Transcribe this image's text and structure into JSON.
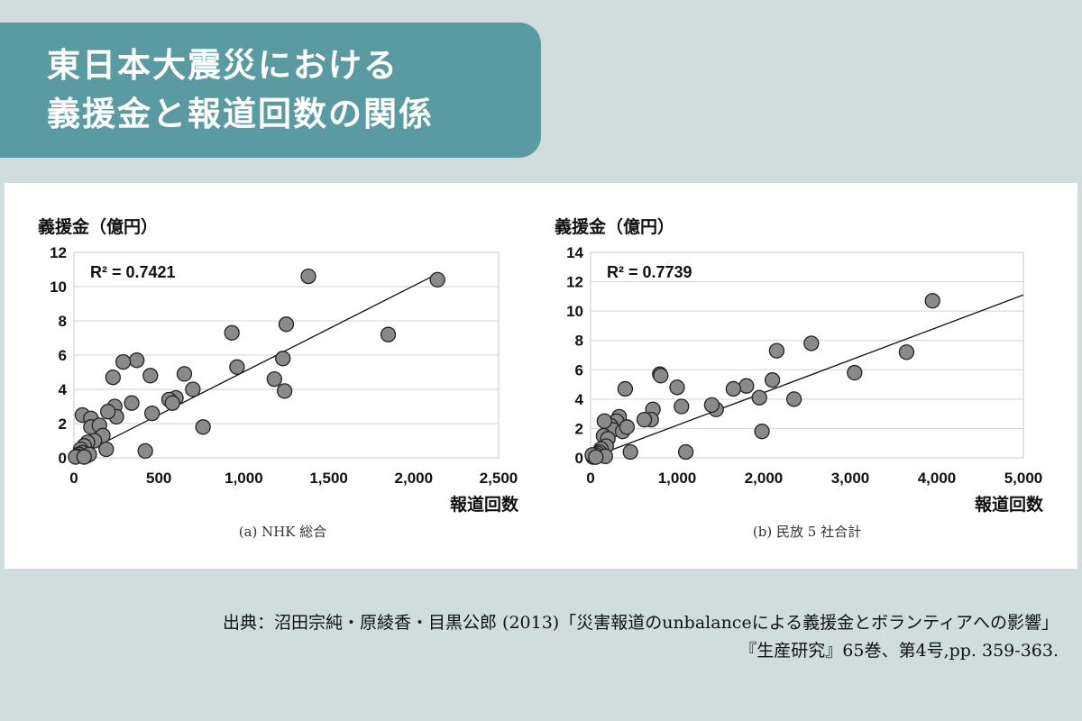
{
  "title": {
    "line1": "東日本大震災における",
    "line2": "義援金と報道回数の関係"
  },
  "colors": {
    "background": "#cfdedd",
    "banner": "#5a9ba1",
    "point_fill": "#8a8a8a",
    "point_stroke": "#222222"
  },
  "chart_data": [
    {
      "type": "scatter",
      "ylabel": "義援金（億円）",
      "xlabel": "報道回数",
      "caption": "(a)  NHK 総合",
      "r_squared": "R² = 0.7421",
      "xlim": [
        0,
        2500
      ],
      "ylim": [
        0,
        12
      ],
      "xticks": [
        0,
        500,
        1000,
        1500,
        2000,
        2500
      ],
      "xtick_labels": [
        "0",
        "500",
        "1,000",
        "1,500",
        "2,000",
        "2,500"
      ],
      "yticks": [
        0,
        2,
        4,
        6,
        8,
        10,
        12
      ],
      "ytick_labels": [
        "0",
        "2",
        "4",
        "6",
        "8",
        "10",
        "12"
      ],
      "trendline": [
        [
          0,
          0
        ],
        [
          2150,
          10.8
        ]
      ],
      "grid": "horizontal",
      "points": [
        [
          2140,
          10.4
        ],
        [
          1380,
          10.6
        ],
        [
          1850,
          7.2
        ],
        [
          1250,
          7.8
        ],
        [
          930,
          7.3
        ],
        [
          960,
          5.3
        ],
        [
          1230,
          5.8
        ],
        [
          1180,
          4.6
        ],
        [
          1240,
          3.9
        ],
        [
          650,
          4.9
        ],
        [
          700,
          4.0
        ],
        [
          760,
          1.8
        ],
        [
          600,
          3.5
        ],
        [
          560,
          3.4
        ],
        [
          580,
          3.2
        ],
        [
          450,
          4.8
        ],
        [
          460,
          2.6
        ],
        [
          420,
          0.4
        ],
        [
          370,
          5.7
        ],
        [
          290,
          5.6
        ],
        [
          230,
          4.7
        ],
        [
          340,
          3.2
        ],
        [
          240,
          3.0
        ],
        [
          250,
          2.4
        ],
        [
          200,
          2.7
        ],
        [
          50,
          2.5
        ],
        [
          100,
          2.3
        ],
        [
          100,
          1.8
        ],
        [
          150,
          1.9
        ],
        [
          170,
          1.3
        ],
        [
          190,
          0.5
        ],
        [
          120,
          1.0
        ],
        [
          80,
          0.9
        ],
        [
          60,
          0.7
        ],
        [
          40,
          0.5
        ],
        [
          50,
          0.3
        ],
        [
          30,
          0.2
        ],
        [
          20,
          0.1
        ],
        [
          10,
          0.05
        ],
        [
          70,
          0.1
        ],
        [
          90,
          0.2
        ],
        [
          60,
          0.05
        ]
      ]
    },
    {
      "type": "scatter",
      "ylabel": "義援金（億円）",
      "xlabel": "報道回数",
      "caption": "(b)  民放 5 社合計",
      "r_squared": "R² = 0.7739",
      "xlim": [
        0,
        5000
      ],
      "ylim": [
        0,
        14
      ],
      "xticks": [
        0,
        1000,
        2000,
        3000,
        4000,
        5000
      ],
      "xtick_labels": [
        "0",
        "1,000",
        "2,000",
        "3,000",
        "4,000",
        "5,000"
      ],
      "yticks": [
        0,
        2,
        4,
        6,
        8,
        10,
        12,
        14
      ],
      "ytick_labels": [
        "0",
        "2",
        "4",
        "6",
        "8",
        "10",
        "12",
        "14"
      ],
      "trendline": [
        [
          0,
          0
        ],
        [
          5000,
          11.1
        ]
      ],
      "grid": "horizontal",
      "points": [
        [
          3950,
          10.7
        ],
        [
          3650,
          7.2
        ],
        [
          3050,
          5.8
        ],
        [
          2550,
          7.8
        ],
        [
          2150,
          7.3
        ],
        [
          2100,
          5.3
        ],
        [
          1950,
          4.1
        ],
        [
          1980,
          1.8
        ],
        [
          2350,
          4.0
        ],
        [
          1800,
          4.9
        ],
        [
          1650,
          4.7
        ],
        [
          1450,
          3.3
        ],
        [
          1400,
          3.6
        ],
        [
          1000,
          4.8
        ],
        [
          1050,
          3.5
        ],
        [
          1100,
          0.4
        ],
        [
          800,
          5.7
        ],
        [
          810,
          5.6
        ],
        [
          720,
          3.3
        ],
        [
          700,
          2.6
        ],
        [
          620,
          2.6
        ],
        [
          400,
          4.7
        ],
        [
          330,
          2.8
        ],
        [
          300,
          2.5
        ],
        [
          230,
          2.2
        ],
        [
          260,
          1.9
        ],
        [
          160,
          2.5
        ],
        [
          370,
          1.8
        ],
        [
          420,
          2.1
        ],
        [
          460,
          0.4
        ],
        [
          150,
          1.5
        ],
        [
          200,
          1.3
        ],
        [
          180,
          0.8
        ],
        [
          120,
          0.6
        ],
        [
          100,
          0.4
        ],
        [
          80,
          0.3
        ],
        [
          60,
          0.2
        ],
        [
          40,
          0.1
        ],
        [
          30,
          0.05
        ],
        [
          170,
          0.1
        ],
        [
          20,
          0.2
        ],
        [
          60,
          0.05
        ]
      ]
    }
  ],
  "citation": {
    "line1": "出典：沼田宗純・原綾香・目黒公郎 (2013)「災害報道のunbalanceによる義援金とボランティアへの影響」",
    "line2": "『生産研究』65巻、第4号,pp. 359-363."
  }
}
